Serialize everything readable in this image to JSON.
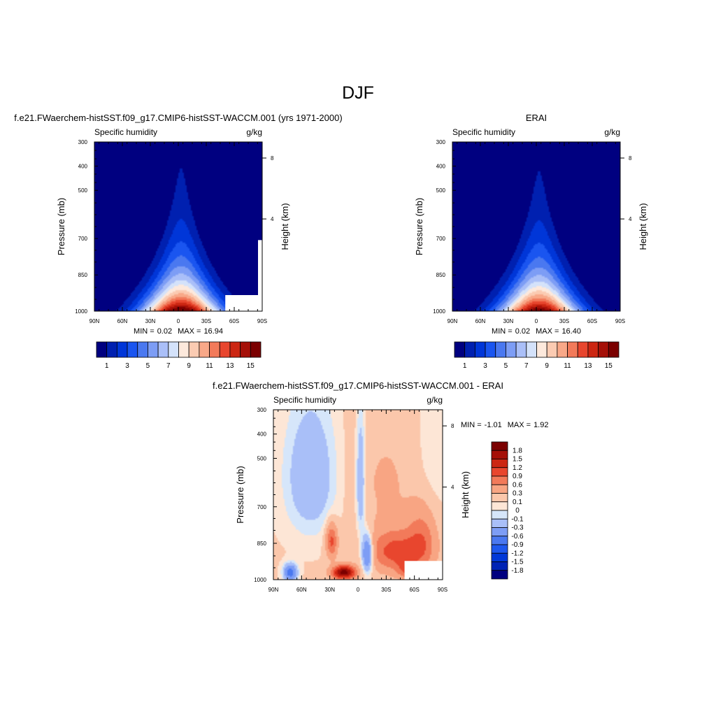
{
  "figure": {
    "title": "DJF"
  },
  "colors": {
    "abs_scale": [
      "#000080",
      "#0020b0",
      "#0036d8",
      "#1a55f0",
      "#4a78f0",
      "#7d9df5",
      "#aabff8",
      "#d4e2fa",
      "#fde9dc",
      "#fbcbb2",
      "#f8a888",
      "#f27a5a",
      "#e8462e",
      "#cc2612",
      "#a51008",
      "#7b0000"
    ],
    "diff_scale": [
      "#000080",
      "#0023b5",
      "#0038d8",
      "#1e58ee",
      "#4a78f0",
      "#7d9df5",
      "#a9bff8",
      "#d6e6fa",
      "#fde6d6",
      "#fbc7ab",
      "#f8a583",
      "#f27a5a",
      "#e8462e",
      "#cc2612",
      "#a51008",
      "#7b0000"
    ]
  },
  "chart_data": [
    {
      "type": "heatmap",
      "id": "model",
      "panel_title": "f.e21.FWaerchem-histSST.f09_g17.CMIP6-histSST-WACCM.001 (yrs 1971-2000)",
      "variable": "Specific humidity",
      "units": "g/kg",
      "ylabel": "Pressure (mb)",
      "y2label": "Height (km)",
      "y_ticks": [
        "300",
        "400",
        "500",
        "700",
        "850",
        "1000"
      ],
      "y2_ticks": [
        "8",
        "4"
      ],
      "x_ticks": [
        "90N",
        "60N",
        "30N",
        "0",
        "30S",
        "60S",
        "90S"
      ],
      "stats": {
        "min_label": "MIN =",
        "min": "0.02",
        "max_label": "MAX =",
        "max": "16.94"
      },
      "colorbar_labels": [
        "1",
        "3",
        "5",
        "7",
        "9",
        "11",
        "13",
        "15"
      ],
      "x_range_lat": [
        90,
        -90
      ],
      "y_range_mb": [
        1000,
        300
      ],
      "peak_q_gkg": 16.94,
      "min_q_gkg": 0.02
    },
    {
      "type": "heatmap",
      "id": "obs",
      "panel_title": "ERAI",
      "variable": "Specific humidity",
      "units": "g/kg",
      "ylabel": "Pressure (mb)",
      "y2label": "Height (km)",
      "y_ticks": [
        "300",
        "400",
        "500",
        "700",
        "850",
        "1000"
      ],
      "y2_ticks": [
        "8",
        "4"
      ],
      "x_ticks": [
        "90N",
        "60N",
        "30N",
        "0",
        "30S",
        "60S",
        "90S"
      ],
      "stats": {
        "min_label": "MIN =",
        "min": "0.02",
        "max_label": "MAX =",
        "max": "16.40"
      },
      "colorbar_labels": [
        "1",
        "3",
        "5",
        "7",
        "9",
        "11",
        "13",
        "15"
      ],
      "x_range_lat": [
        90,
        -90
      ],
      "y_range_mb": [
        1000,
        300
      ],
      "peak_q_gkg": 16.4,
      "min_q_gkg": 0.02
    },
    {
      "type": "heatmap",
      "id": "diff",
      "panel_title": "f.e21.FWaerchem-histSST.f09_g17.CMIP6-histSST-WACCM.001 - ERAI",
      "variable": "Specific humidity",
      "units": "g/kg",
      "ylabel": "Pressure (mb)",
      "y2label": "Height (km)",
      "y_ticks": [
        "300",
        "400",
        "500",
        "700",
        "850",
        "1000"
      ],
      "y2_ticks": [
        "8",
        "4"
      ],
      "x_ticks": [
        "90N",
        "60N",
        "30N",
        "0",
        "30S",
        "60S",
        "90S"
      ],
      "stats": {
        "min_label": "MIN =",
        "min": "-1.01",
        "max_label": "MAX =",
        "max": "1.92"
      },
      "colorbar_labels": [
        "1.8",
        "1.5",
        "1.2",
        "0.9",
        "0.6",
        "0.3",
        "0.1",
        "0",
        "-0.1",
        "-0.3",
        "-0.6",
        "-0.9",
        "-1.2",
        "-1.5",
        "-1.8"
      ],
      "x_range_lat": [
        90,
        -90
      ],
      "y_range_mb": [
        1000,
        300
      ]
    }
  ]
}
